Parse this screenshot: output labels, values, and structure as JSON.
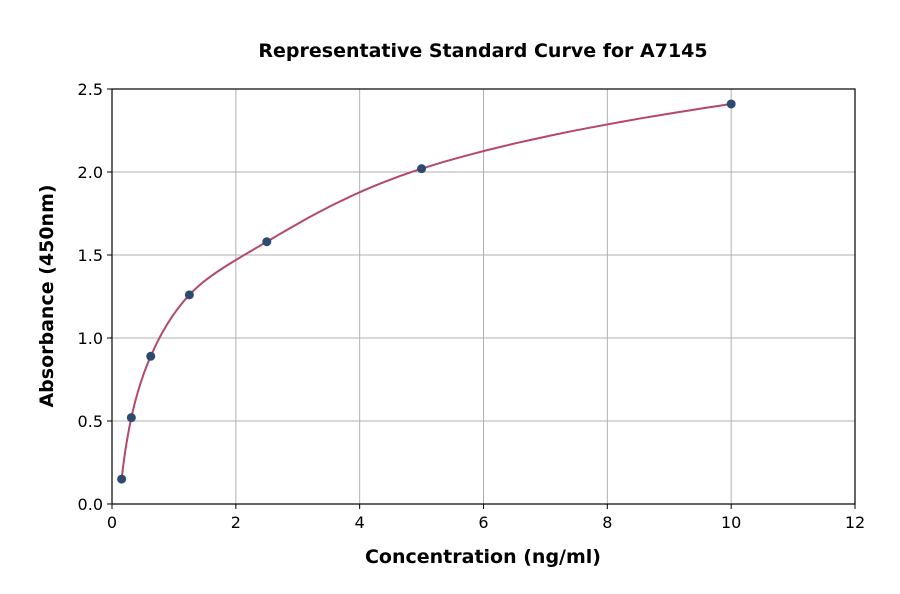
{
  "chart_data": {
    "type": "scatter",
    "title": "Representative Standard Curve for A7145",
    "xlabel": "Concentration (ng/ml)",
    "ylabel": "Absorbance (450nm)",
    "xlim": [
      0,
      12
    ],
    "ylim": [
      0,
      2.5
    ],
    "xticks": [
      "0",
      "2",
      "4",
      "6",
      "8",
      "10",
      "12"
    ],
    "yticks": [
      "0.0",
      "0.5",
      "1.0",
      "1.5",
      "2.0",
      "2.5"
    ],
    "grid": true,
    "points": [
      {
        "x": 0.156,
        "y": 0.15
      },
      {
        "x": 0.3125,
        "y": 0.52
      },
      {
        "x": 0.625,
        "y": 0.89
      },
      {
        "x": 1.25,
        "y": 1.26
      },
      {
        "x": 2.5,
        "y": 1.58
      },
      {
        "x": 5,
        "y": 2.02
      },
      {
        "x": 10,
        "y": 2.41
      }
    ],
    "fit_curve": true,
    "colors": {
      "points": "#2e4a6e",
      "curve": "#b5476b",
      "grid": "#b0b0b0"
    }
  }
}
